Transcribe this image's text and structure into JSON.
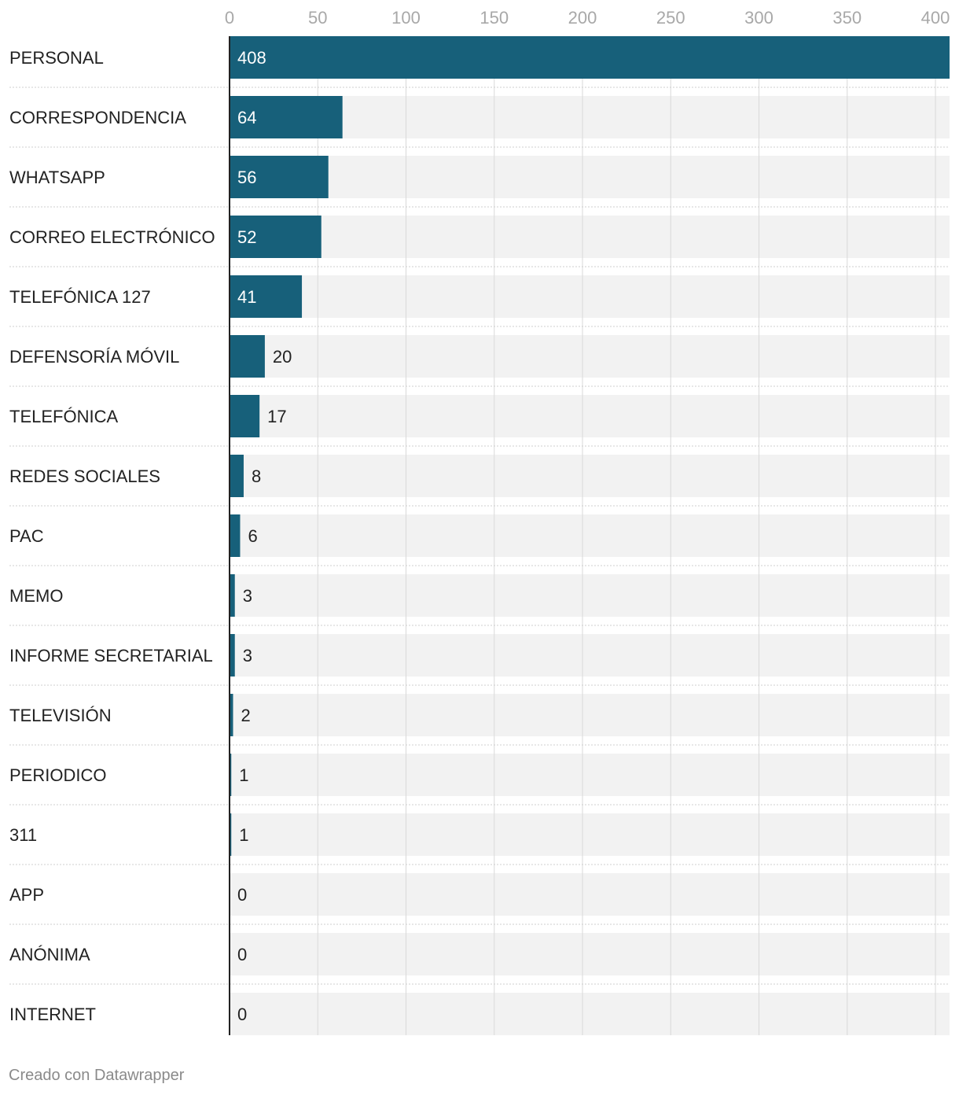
{
  "chart_data": {
    "type": "bar",
    "orientation": "horizontal",
    "categories": [
      "PERSONAL",
      "CORRESPONDENCIA",
      "WHATSAPP",
      "CORREO ELECTRÓNICO",
      "TELEFÓNICA 127",
      "DEFENSORÍA MÓVIL",
      "TELEFÓNICA",
      "REDES SOCIALES",
      "PAC",
      "MEMO",
      "INFORME SECRETARIAL",
      "TELEVISIÓN",
      "PERIODICO",
      "311",
      "APP",
      "ANÓNIMA",
      "INTERNET"
    ],
    "values": [
      408,
      64,
      56,
      52,
      41,
      20,
      17,
      8,
      6,
      3,
      3,
      2,
      1,
      1,
      0,
      0,
      0
    ],
    "x_ticks": [
      0,
      50,
      100,
      150,
      200,
      250,
      300,
      350,
      400
    ],
    "xlim": [
      0,
      408
    ],
    "grid": true,
    "legend": "none",
    "colors": {
      "bar": "#17607a",
      "track": "#f2f2f2",
      "grid": "#d9d9d9",
      "separator": "#cfcfcf",
      "axis": "#222222",
      "value_inside": "#ffffff",
      "value_outside": "#222222"
    }
  },
  "footer": {
    "credit": "Creado con Datawrapper"
  }
}
